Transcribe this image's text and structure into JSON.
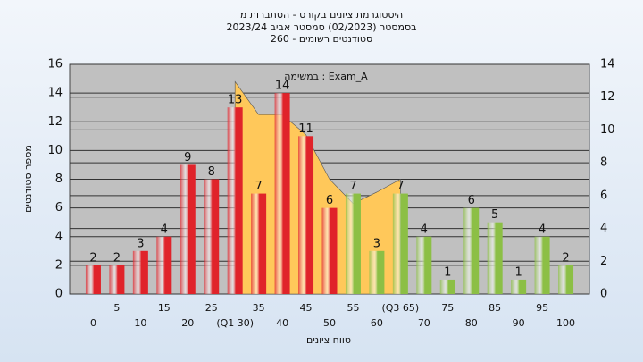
{
  "chart_data": {
    "type": "bar",
    "title": "היסטוגרמת ציונים בקורס - הסתברות מ",
    "subtitle": "בסמסטר  (02/2023)  סמסטר אביב 2023/24",
    "subtitle2": "סטודנטים רשומים - 260",
    "annotation": "במשימה : Exam_A",
    "ylabel": "מספר סטודנטים",
    "xlabel": "טווח ציונים",
    "categories": [
      "0",
      "5",
      "10",
      "15",
      "20",
      "25",
      "(Q1 30)",
      "35",
      "40",
      "45",
      "50",
      "55",
      "60",
      "(Q3 65)",
      "70",
      "75",
      "80",
      "85",
      "90",
      "95",
      "100"
    ],
    "series": [
      {
        "color": "#e0232a",
        "values": [
          2,
          2,
          3,
          4,
          9,
          8,
          13,
          7,
          14,
          11,
          6,
          null,
          null,
          null,
          null,
          null,
          null,
          null,
          null,
          null,
          null
        ]
      },
      {
        "color": "#8cbf45",
        "values": [
          null,
          null,
          null,
          null,
          null,
          null,
          null,
          null,
          null,
          null,
          null,
          7,
          3,
          7,
          4,
          1,
          6,
          5,
          1,
          4,
          2
        ]
      }
    ],
    "area": {
      "color": "#ffc85a",
      "values": [
        null,
        null,
        null,
        null,
        null,
        null,
        14.8,
        12.5,
        12.5,
        11.1,
        8,
        6.3,
        7.1,
        8,
        null,
        null,
        null,
        null,
        null,
        null,
        null
      ]
    },
    "ylim": [
      0,
      16
    ],
    "yticks": [
      0,
      2,
      4,
      6,
      8,
      10,
      12,
      14,
      16
    ],
    "y2lim": [
      0,
      14
    ],
    "y2ticks": [
      0,
      2,
      4,
      6,
      8,
      10,
      12,
      14
    ],
    "grid": true
  }
}
